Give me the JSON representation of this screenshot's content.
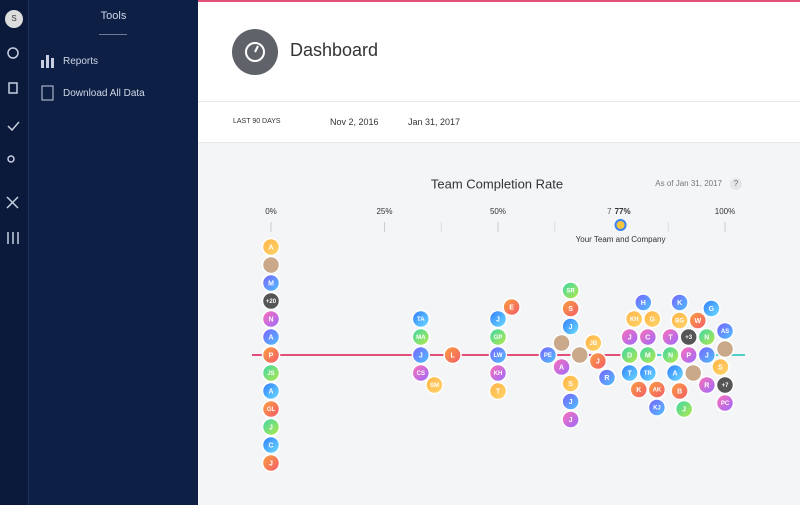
{
  "sidebar": {
    "avatar": "S",
    "section": "Tools",
    "items": [
      "Reports",
      "Download All Data"
    ]
  },
  "header": {
    "title": "Dashboard"
  },
  "filter": {
    "range": "LAST 90 DAYS",
    "start": "Nov 2, 2016",
    "end": "Jan 31, 2017"
  },
  "chart": {
    "title": "Team Completion Rate",
    "as_of": "As of Jan 31, 2017",
    "help": "?",
    "xlim": [
      0,
      100
    ],
    "xticks": [
      {
        "value": 0,
        "label": "0%"
      },
      {
        "value": 25,
        "label": "25%"
      },
      {
        "value": 50,
        "label": "50%"
      },
      {
        "value": 100,
        "label": "100%"
      }
    ],
    "marker": {
      "value": 77,
      "label": "77%",
      "count": "7",
      "caption": "Your Team and Company"
    },
    "bubbles": [
      {
        "label": "P",
        "value": 0
      },
      {
        "label": "A",
        "value": 0
      },
      {
        "label": "JS",
        "value": 0
      },
      {
        "label": "N",
        "value": 0
      },
      {
        "label": "A",
        "value": 0
      },
      {
        "label": "+20",
        "value": 0
      },
      {
        "label": "GL",
        "value": 0
      },
      {
        "label": "M",
        "value": 0
      },
      {
        "label": "J",
        "value": 0
      },
      {
        "label": null,
        "value": 0
      },
      {
        "label": "C",
        "value": 0
      },
      {
        "label": "A",
        "value": 0
      },
      {
        "label": "J",
        "value": 0
      },
      {
        "label": "J",
        "value": 33
      },
      {
        "label": "MA",
        "value": 33
      },
      {
        "label": "CS",
        "value": 33
      },
      {
        "label": "TA",
        "value": 33
      },
      {
        "label": "SM",
        "value": 36
      },
      {
        "label": "L",
        "value": 40
      },
      {
        "label": "LW",
        "value": 50
      },
      {
        "label": "GP",
        "value": 50
      },
      {
        "label": "KH",
        "value": 50
      },
      {
        "label": "J",
        "value": 50
      },
      {
        "label": "T",
        "value": 50
      },
      {
        "label": "E",
        "value": 53
      },
      {
        "label": "PE",
        "value": 61
      },
      {
        "label": null,
        "value": 64
      },
      {
        "label": "A",
        "value": 64
      },
      {
        "label": "J",
        "value": 66
      },
      {
        "label": "S",
        "value": 66
      },
      {
        "label": "S",
        "value": 66
      },
      {
        "label": "J",
        "value": 66
      },
      {
        "label": "SR",
        "value": 66
      },
      {
        "label": "J",
        "value": 66
      },
      {
        "label": null,
        "value": 68
      },
      {
        "label": "JB",
        "value": 71
      },
      {
        "label": "J",
        "value": 72
      },
      {
        "label": "R",
        "value": 74
      },
      {
        "label": "D",
        "value": 79
      },
      {
        "label": "J",
        "value": 79
      },
      {
        "label": "T",
        "value": 79
      },
      {
        "label": "KH",
        "value": 80
      },
      {
        "label": "K",
        "value": 81
      },
      {
        "label": "H",
        "value": 82
      },
      {
        "label": "M",
        "value": 83
      },
      {
        "label": "C",
        "value": 83
      },
      {
        "label": "TR",
        "value": 83
      },
      {
        "label": "G",
        "value": 84
      },
      {
        "label": "AK",
        "value": 85
      },
      {
        "label": "KJ",
        "value": 85
      },
      {
        "label": "N",
        "value": 88
      },
      {
        "label": "T",
        "value": 88
      },
      {
        "label": "A",
        "value": 89
      },
      {
        "label": "BG",
        "value": 90
      },
      {
        "label": "B",
        "value": 90
      },
      {
        "label": "K",
        "value": 90
      },
      {
        "label": "J",
        "value": 91
      },
      {
        "label": "P",
        "value": 92
      },
      {
        "label": "+3",
        "value": 92
      },
      {
        "label": null,
        "value": 93
      },
      {
        "label": "W",
        "value": 94
      },
      {
        "label": "J",
        "value": 96
      },
      {
        "label": "N",
        "value": 96
      },
      {
        "label": "R",
        "value": 96
      },
      {
        "label": "G",
        "value": 97
      },
      {
        "label": "S",
        "value": 99
      },
      {
        "label": null,
        "value": 100
      },
      {
        "label": "AS",
        "value": 100
      },
      {
        "label": "+7",
        "value": 100
      },
      {
        "label": "PC",
        "value": 100
      }
    ]
  }
}
